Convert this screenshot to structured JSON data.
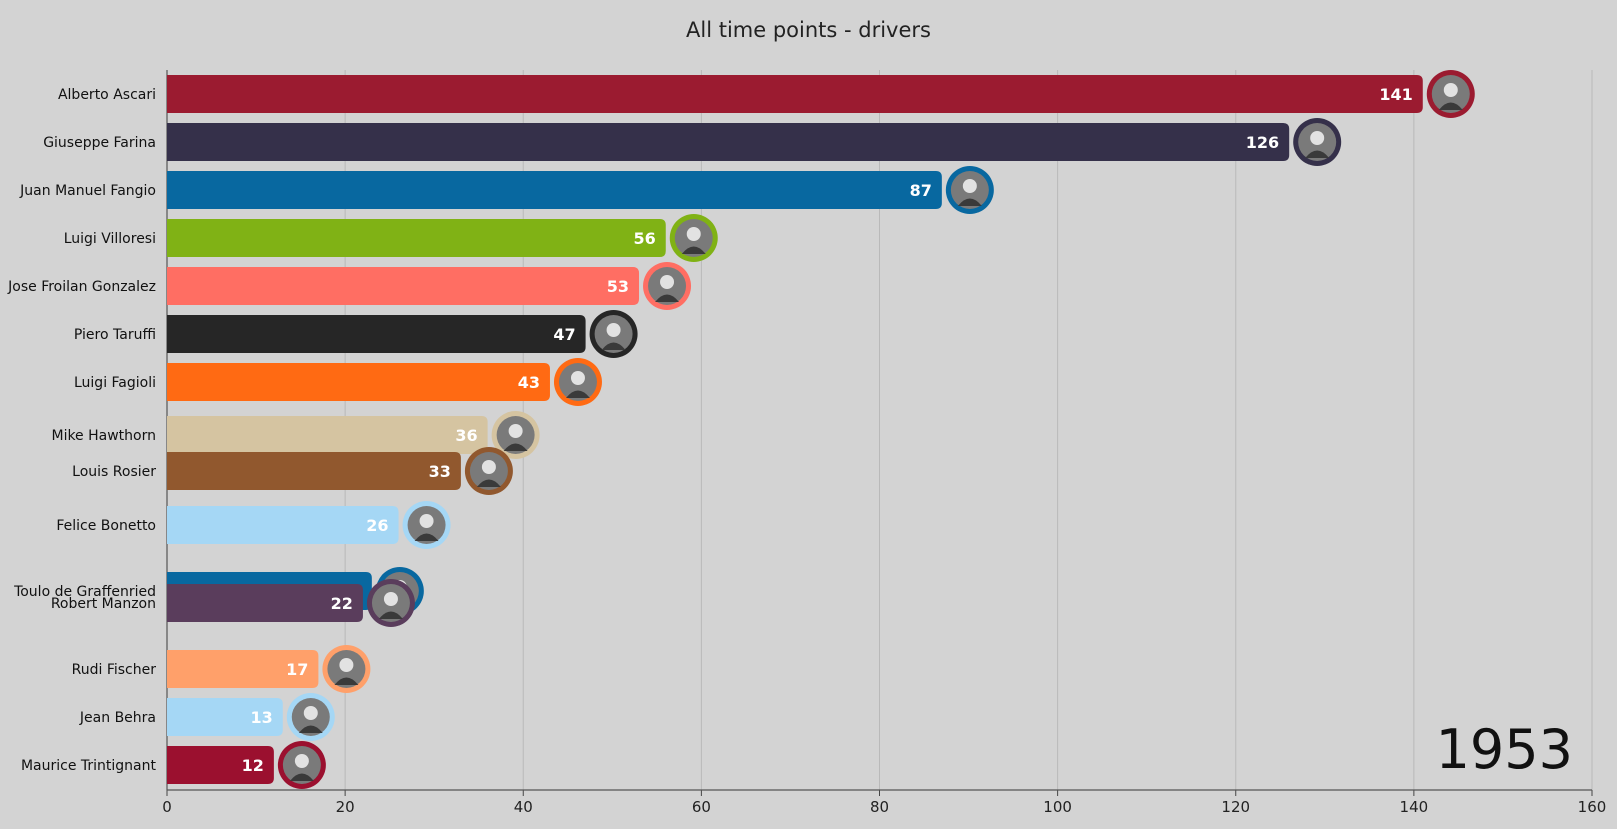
{
  "page": {
    "title": "All time points - drivers",
    "year": "1953"
  },
  "chart_data": {
    "type": "bar",
    "orientation": "horizontal",
    "title": "All time points - drivers",
    "xlabel": "",
    "ylabel": "",
    "xlim": [
      0,
      160
    ],
    "xticks": [
      0,
      20,
      40,
      60,
      80,
      100,
      120,
      140,
      160
    ],
    "grid": "vertical",
    "annotation": "1953",
    "bars": [
      {
        "driver": "Alberto Ascari",
        "value": 141,
        "color": "#9b1b30"
      },
      {
        "driver": "Giuseppe Farina",
        "value": 126,
        "color": "#35304a"
      },
      {
        "driver": "Juan Manuel Fangio",
        "value": 87,
        "color": "#0868a0"
      },
      {
        "driver": "Luigi Villoresi",
        "value": 56,
        "color": "#80b215"
      },
      {
        "driver": "Jose Froilan Gonzalez",
        "value": 53,
        "color": "#ff6e63"
      },
      {
        "driver": "Piero Taruffi",
        "value": 47,
        "color": "#262626"
      },
      {
        "driver": "Luigi Fagioli",
        "value": 43,
        "color": "#ff6a13"
      },
      {
        "driver": "Mike Hawthorn",
        "value": 36,
        "color": "#d5c4a1"
      },
      {
        "driver": "Louis Rosier",
        "value": 33,
        "color": "#91582e"
      },
      {
        "driver": "Felice Bonetto",
        "value": 26,
        "color": "#a5d7f5"
      },
      {
        "driver": "Toulo de Graffenried",
        "value": 23,
        "color": "#0868a0"
      },
      {
        "driver": "Robert Manzon",
        "value": 22,
        "color": "#5a3d5c"
      },
      {
        "driver": "Rudi Fischer",
        "value": 17,
        "color": "#ffa06a"
      },
      {
        "driver": "Jean Behra",
        "value": 13,
        "color": "#a5d7f5"
      },
      {
        "driver": "Maurice Trintignant",
        "value": 12,
        "color": "#9b102f"
      }
    ]
  }
}
